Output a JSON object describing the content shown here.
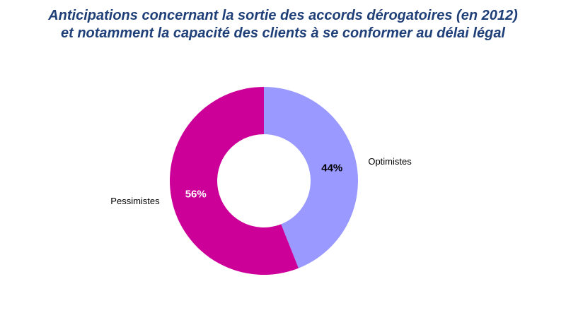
{
  "chart_data": {
    "type": "pie",
    "variant": "donut",
    "title": "Anticipations concernant la sortie des accords dérogatoires (en 2012) et notamment la capacité des clients à se conformer au délai légal",
    "title_lines": [
      "Anticipations concernant la sortie des accords dérogatoires (en 2012)",
      "et notamment la capacité des clients à se conformer au délai légal"
    ],
    "slices": [
      {
        "name": "Optimistes",
        "value": 44,
        "label": "44%",
        "color": "#9999ff",
        "label_color": "#000000"
      },
      {
        "name": "Pessimistes",
        "value": 56,
        "label": "56%",
        "color": "#cc0099",
        "label_color": "#ffffff"
      }
    ],
    "legend": "none",
    "start_angle": "top",
    "direction": "clockwise"
  }
}
